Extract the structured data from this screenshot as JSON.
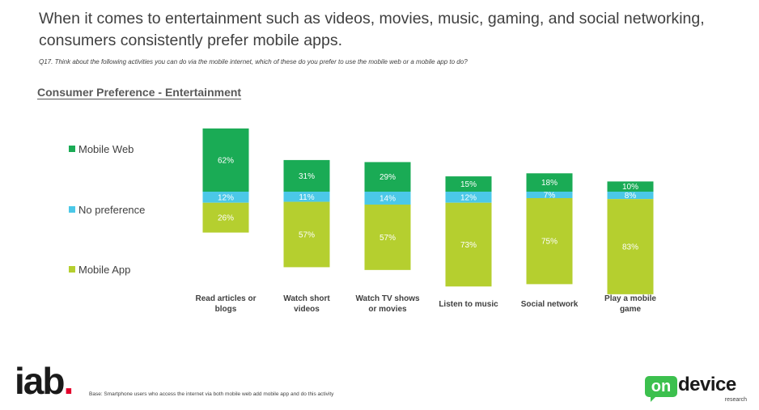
{
  "headline": "When it comes to entertainment such as videos, movies, music, gaming, and social networking, consumers consistently prefer mobile apps.",
  "question": "Q17. Think about the following activities you can do via the mobile internet, which of these do you prefer to use the mobile web or a mobile app to do?",
  "section_title": "Consumer Preference - Entertainment",
  "footnote": "Base: Smartphone users who access the internet via both mobile web add mobile app and do this activity",
  "logos": {
    "iab": "iab",
    "iab_dot": ".",
    "ondevice_on": "on",
    "ondevice_word": "device",
    "ondevice_sub": "research"
  },
  "colors": {
    "mobile_web": "#1aab55",
    "no_preference": "#4bc8e8",
    "mobile_app": "#b5cf2f",
    "text": "#404040"
  },
  "chart_data": {
    "type": "bar",
    "stacked": true,
    "unit": "%",
    "title": "Consumer Preference - Entertainment",
    "xlabel": "",
    "ylabel": "",
    "categories": [
      [
        "Read articles or",
        "blogs"
      ],
      [
        "Watch short",
        "videos"
      ],
      [
        "Watch TV shows",
        "or movies"
      ],
      [
        "Listen to music"
      ],
      [
        "Social network"
      ],
      [
        "Play a mobile",
        "game"
      ]
    ],
    "series": [
      {
        "name": "Mobile Web",
        "color": "#1aab55",
        "values": [
          62,
          31,
          29,
          15,
          18,
          10
        ]
      },
      {
        "name": "No preference",
        "color": "#4bc8e8",
        "values": [
          12,
          11,
          14,
          12,
          7,
          8
        ]
      },
      {
        "name": "Mobile App",
        "color": "#b5cf2f",
        "values": [
          26,
          57,
          57,
          73,
          75,
          83
        ]
      }
    ],
    "legend_position": "left",
    "grid": false
  }
}
